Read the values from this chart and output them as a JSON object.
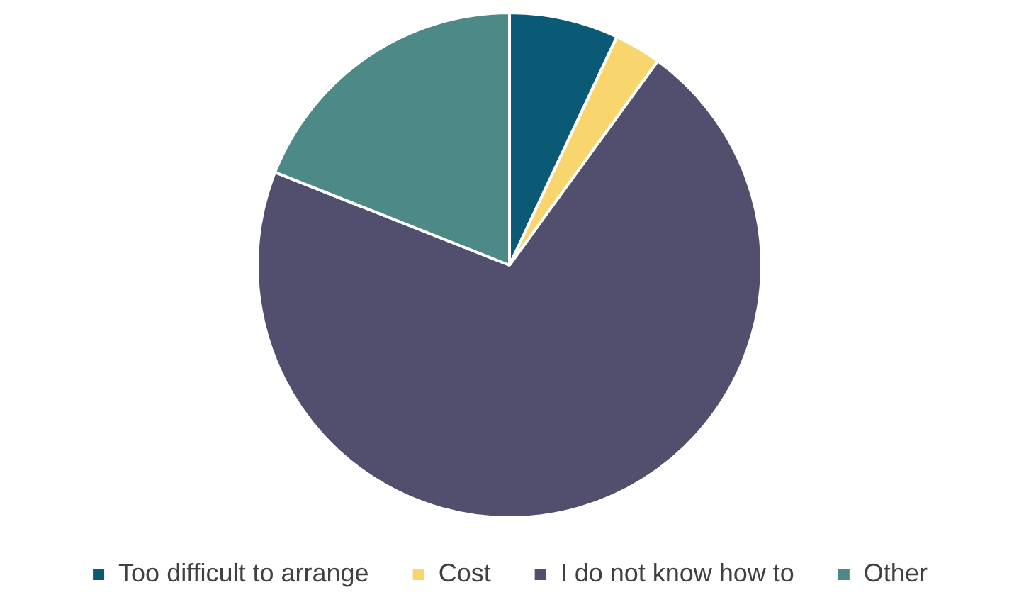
{
  "chart_data": {
    "type": "pie",
    "categories": [
      "Too difficult to arrange",
      "Cost",
      "I do not know how to",
      "Other"
    ],
    "values": [
      7,
      3,
      71,
      19
    ],
    "colors": [
      "#0b5a75",
      "#f9d56e",
      "#524e6e",
      "#4d8a87"
    ],
    "legend": "bottom"
  }
}
